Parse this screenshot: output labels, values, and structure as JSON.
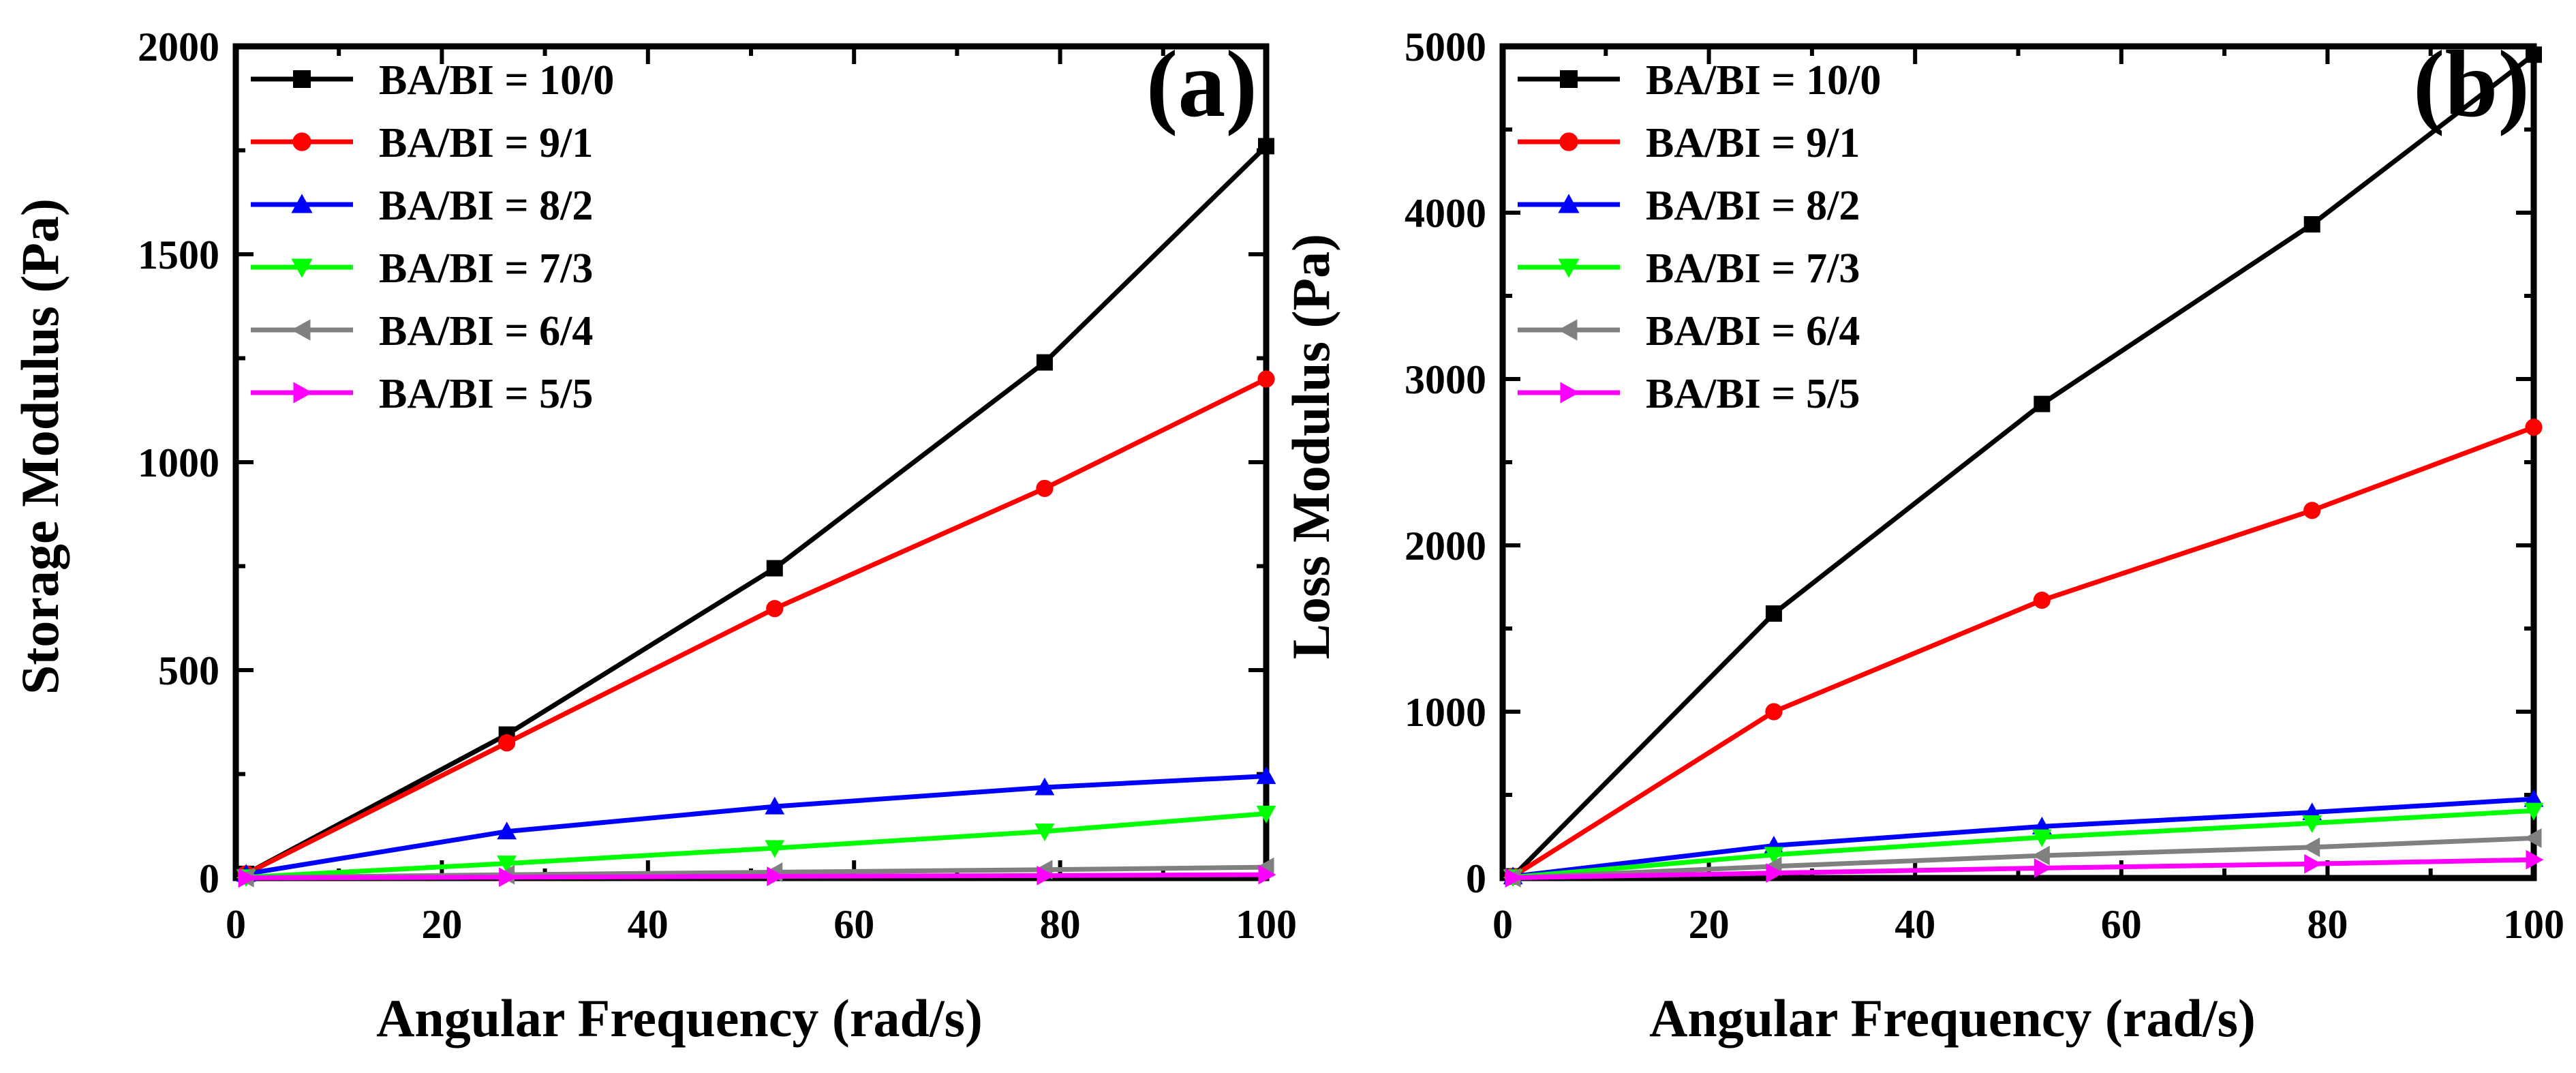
{
  "series_colors": [
    "#000000",
    "#ff0000",
    "#0000ff",
    "#00ff00",
    "#808080",
    "#ff00ff"
  ],
  "chart_data": [
    {
      "type": "line",
      "panel_label": "(a)",
      "xlabel": "Angular Frequency (rad/s)",
      "ylabel": "Storage Modulus (Pa)",
      "xlim": [
        0,
        100
      ],
      "ylim": [
        0,
        2000
      ],
      "xticks": [
        0,
        20,
        40,
        60,
        80,
        100
      ],
      "yticks": [
        0,
        500,
        1000,
        1500,
        2000
      ],
      "x": [
        1,
        26.3,
        52.3,
        78.5,
        100
      ],
      "legend_position": "top-left",
      "series": [
        {
          "name": "BA/BI = 10/0",
          "marker": "square",
          "values": [
            10,
            345,
            745,
            1240,
            1760
          ]
        },
        {
          "name": "BA/BI = 9/1",
          "marker": "circle",
          "values": [
            10,
            325,
            648,
            937,
            1200
          ]
        },
        {
          "name": "BA/BI = 8/2",
          "marker": "triangle-up",
          "values": [
            10,
            112,
            172,
            218,
            245
          ]
        },
        {
          "name": "BA/BI = 7/3",
          "marker": "triangle-down",
          "values": [
            2,
            35,
            72,
            112,
            155
          ]
        },
        {
          "name": "BA/BI = 6/4",
          "marker": "triangle-left",
          "values": [
            1,
            8,
            14,
            20,
            26
          ]
        },
        {
          "name": "BA/BI = 5/5",
          "marker": "triangle-right",
          "values": [
            0,
            2,
            4,
            6,
            8
          ]
        }
      ]
    },
    {
      "type": "line",
      "panel_label": "(b)",
      "xlabel": "Angular Frequency (rad/s)",
      "ylabel": "Loss Modulus (Pa)",
      "xlim": [
        0,
        100
      ],
      "ylim": [
        0,
        5000
      ],
      "xticks": [
        0,
        20,
        40,
        60,
        80,
        100
      ],
      "yticks": [
        0,
        1000,
        2000,
        3000,
        4000,
        5000
      ],
      "x": [
        1,
        26.3,
        52.3,
        78.5,
        100
      ],
      "legend_position": "top-left",
      "series": [
        {
          "name": "BA/BI = 10/0",
          "marker": "square",
          "values": [
            10,
            1590,
            2850,
            3930,
            4950
          ]
        },
        {
          "name": "BA/BI = 9/1",
          "marker": "circle",
          "values": [
            10,
            1000,
            1670,
            2210,
            2710
          ]
        },
        {
          "name": "BA/BI = 8/2",
          "marker": "triangle-up",
          "values": [
            10,
            195,
            310,
            395,
            475
          ]
        },
        {
          "name": "BA/BI = 7/3",
          "marker": "triangle-down",
          "values": [
            5,
            140,
            245,
            330,
            405
          ]
        },
        {
          "name": "BA/BI = 6/4",
          "marker": "triangle-left",
          "values": [
            2,
            70,
            135,
            185,
            240
          ]
        },
        {
          "name": "BA/BI = 5/5",
          "marker": "triangle-right",
          "values": [
            1,
            30,
            60,
            85,
            110
          ]
        }
      ]
    }
  ]
}
